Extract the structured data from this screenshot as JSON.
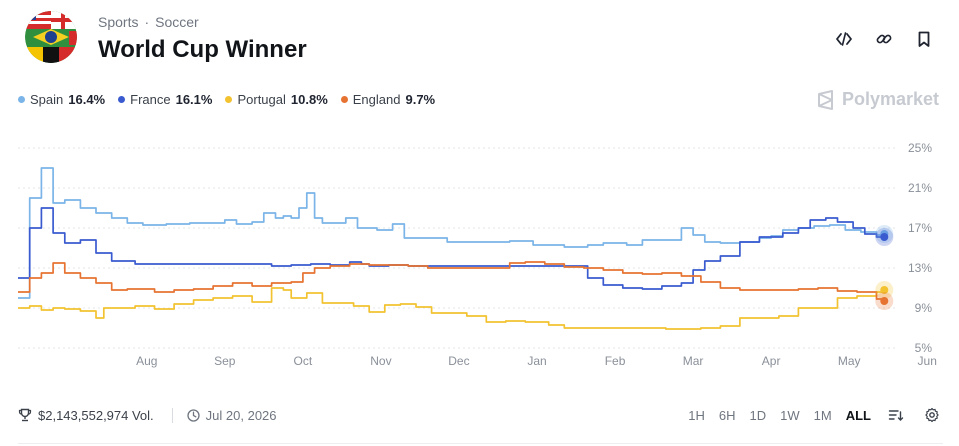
{
  "breadcrumb": {
    "sport": "Sports",
    "separator": "·",
    "league": "Soccer"
  },
  "market": {
    "title": "World Cup Winner"
  },
  "brand": {
    "name": "Polymarket"
  },
  "legend": [
    {
      "name": "Spain",
      "value": "16.4%",
      "color": "#7ab4e8"
    },
    {
      "name": "France",
      "value": "16.1%",
      "color": "#3a5bd0"
    },
    {
      "name": "Portugal",
      "value": "10.8%",
      "color": "#f2c230"
    },
    {
      "name": "England",
      "value": "9.7%",
      "color": "#e67332"
    }
  ],
  "footer": {
    "volume": "$2,143,552,974 Vol.",
    "date": "Jul 20, 2026",
    "ranges": [
      "1H",
      "6H",
      "1D",
      "1W",
      "1M",
      "ALL"
    ],
    "active_range": "ALL"
  },
  "icons": {
    "embed": "code-icon",
    "link": "link-icon",
    "bookmark": "bookmark-icon",
    "volume": "trophy-icon",
    "date": "clock-icon",
    "sort": "sort-icon",
    "settings": "gear-icon"
  },
  "chart_data": {
    "type": "line",
    "x_ticks": [
      "Aug",
      "Sep",
      "Oct",
      "Nov",
      "Dec",
      "Jan",
      "Feb",
      "Mar",
      "Apr",
      "May",
      "Jun"
    ],
    "y_ticks": [
      "25%",
      "21%",
      "17%",
      "13%",
      "9%",
      "5%"
    ],
    "ylim": [
      5,
      25
    ],
    "x_range": [
      "Jul",
      "Jun"
    ],
    "grid": true,
    "legend_position": "top-left",
    "series": [
      {
        "name": "Spain",
        "color": "#7ab4e8",
        "points": [
          [
            0,
            10
          ],
          [
            0.3,
            20
          ],
          [
            0.6,
            23
          ],
          [
            0.9,
            19.5
          ],
          [
            1.2,
            19.8
          ],
          [
            1.6,
            19
          ],
          [
            2,
            18.5
          ],
          [
            2.4,
            18
          ],
          [
            2.8,
            17.5
          ],
          [
            3.2,
            17.3
          ],
          [
            3.8,
            17.4
          ],
          [
            4.4,
            17.5
          ],
          [
            5,
            17.5
          ],
          [
            5.3,
            17.8
          ],
          [
            5.6,
            17.4
          ],
          [
            6,
            17.6
          ],
          [
            6.3,
            18.5
          ],
          [
            6.6,
            18
          ],
          [
            6.8,
            18.2
          ],
          [
            7,
            18
          ],
          [
            7.2,
            19
          ],
          [
            7.4,
            20.5
          ],
          [
            7.6,
            18
          ],
          [
            7.8,
            17.5
          ],
          [
            8.1,
            17.5
          ],
          [
            8.4,
            18
          ],
          [
            8.7,
            17
          ],
          [
            9.2,
            16.8
          ],
          [
            9.6,
            17.4
          ],
          [
            9.9,
            16
          ],
          [
            10.4,
            16
          ],
          [
            11,
            15.6
          ],
          [
            11.6,
            15.6
          ],
          [
            12,
            15.6
          ],
          [
            12.6,
            15.7
          ],
          [
            13.2,
            15.3
          ],
          [
            14,
            15.1
          ],
          [
            14.6,
            15.3
          ],
          [
            15,
            15.5
          ],
          [
            15.6,
            15.3
          ],
          [
            16,
            15.8
          ],
          [
            16.4,
            15.8
          ],
          [
            17,
            17
          ],
          [
            17.3,
            16.3
          ],
          [
            17.6,
            15.6
          ],
          [
            18,
            15.5
          ],
          [
            18.5,
            15.6
          ],
          [
            19,
            16
          ],
          [
            19.3,
            16.2
          ],
          [
            19.6,
            16.8
          ],
          [
            20,
            17
          ],
          [
            20.4,
            17.2
          ],
          [
            20.8,
            17.3
          ],
          [
            21.2,
            16.8
          ],
          [
            21.6,
            16.6
          ],
          [
            22,
            16.3
          ],
          [
            22.2,
            16.4
          ]
        ]
      },
      {
        "name": "France",
        "color": "#3a5bd0",
        "points": [
          [
            0,
            12
          ],
          [
            0.3,
            17
          ],
          [
            0.6,
            19
          ],
          [
            0.9,
            16.5
          ],
          [
            1.2,
            15.5
          ],
          [
            1.6,
            15.8
          ],
          [
            2,
            14.5
          ],
          [
            2.4,
            13.7
          ],
          [
            3,
            13.4
          ],
          [
            4,
            13.4
          ],
          [
            5,
            13.4
          ],
          [
            6,
            13.4
          ],
          [
            6.5,
            13.2
          ],
          [
            7,
            13.3
          ],
          [
            7.5,
            13.4
          ],
          [
            8,
            13.3
          ],
          [
            8.5,
            13.6
          ],
          [
            8.8,
            13.4
          ],
          [
            9,
            13.2
          ],
          [
            9.5,
            13.3
          ],
          [
            10,
            13.2
          ],
          [
            11,
            13.2
          ],
          [
            12,
            13.2
          ],
          [
            13,
            13.2
          ],
          [
            14,
            13.2
          ],
          [
            14.6,
            12
          ],
          [
            15,
            11.3
          ],
          [
            15.5,
            11
          ],
          [
            16,
            10.9
          ],
          [
            16.5,
            11.2
          ],
          [
            17,
            11.5
          ],
          [
            17.3,
            12.8
          ],
          [
            17.6,
            13.7
          ],
          [
            18,
            14.2
          ],
          [
            18.5,
            15.6
          ],
          [
            19,
            16.1
          ],
          [
            19.6,
            16.5
          ],
          [
            20,
            17
          ],
          [
            20.3,
            17.8
          ],
          [
            20.7,
            18
          ],
          [
            21,
            17.6
          ],
          [
            21.4,
            17
          ],
          [
            21.7,
            16.4
          ],
          [
            22,
            16.1
          ],
          [
            22.2,
            16.1
          ]
        ]
      },
      {
        "name": "Portugal",
        "color": "#f2c230",
        "points": [
          [
            0,
            9
          ],
          [
            0.3,
            9.2
          ],
          [
            0.6,
            8.8
          ],
          [
            0.9,
            9
          ],
          [
            1.2,
            8.9
          ],
          [
            1.6,
            8.7
          ],
          [
            2,
            8
          ],
          [
            2.2,
            9
          ],
          [
            2.6,
            9
          ],
          [
            3,
            9.2
          ],
          [
            3.5,
            8.9
          ],
          [
            4,
            9.4
          ],
          [
            4.5,
            9.8
          ],
          [
            5,
            10
          ],
          [
            5.5,
            10.2
          ],
          [
            6,
            9.6
          ],
          [
            6.5,
            11
          ],
          [
            6.8,
            10.8
          ],
          [
            7,
            10
          ],
          [
            7.4,
            10.5
          ],
          [
            7.8,
            9.5
          ],
          [
            8.2,
            9.5
          ],
          [
            8.6,
            9.2
          ],
          [
            9,
            8.6
          ],
          [
            9.4,
            9.3
          ],
          [
            9.8,
            9.4
          ],
          [
            10.2,
            9.1
          ],
          [
            10.6,
            8.5
          ],
          [
            11,
            8.5
          ],
          [
            11.5,
            8.2
          ],
          [
            12,
            7.6
          ],
          [
            12.5,
            7.7
          ],
          [
            13,
            7.6
          ],
          [
            13.6,
            7.3
          ],
          [
            14,
            7
          ],
          [
            14.6,
            7
          ],
          [
            15,
            7
          ],
          [
            15.6,
            7
          ],
          [
            16,
            7
          ],
          [
            16.6,
            6.9
          ],
          [
            17,
            6.9
          ],
          [
            17.5,
            7
          ],
          [
            18,
            7.2
          ],
          [
            18.5,
            8
          ],
          [
            19,
            8
          ],
          [
            19.5,
            8.2
          ],
          [
            20,
            9
          ],
          [
            20.5,
            9
          ],
          [
            21,
            10
          ],
          [
            21.5,
            10.2
          ],
          [
            22,
            10.6
          ],
          [
            22.2,
            10.8
          ]
        ]
      },
      {
        "name": "England",
        "color": "#e67332",
        "points": [
          [
            0,
            10.6
          ],
          [
            0.3,
            12
          ],
          [
            0.6,
            12.5
          ],
          [
            0.9,
            13.5
          ],
          [
            1.2,
            12.5
          ],
          [
            1.6,
            12
          ],
          [
            2,
            11.5
          ],
          [
            2.4,
            10.8
          ],
          [
            2.8,
            10.9
          ],
          [
            3.5,
            10.6
          ],
          [
            4,
            10.8
          ],
          [
            4.5,
            10.9
          ],
          [
            5,
            11.2
          ],
          [
            5.5,
            11.5
          ],
          [
            6,
            11.2
          ],
          [
            6.5,
            11.5
          ],
          [
            7,
            11.6
          ],
          [
            7.3,
            12.5
          ],
          [
            7.6,
            13
          ],
          [
            8,
            13.2
          ],
          [
            8.5,
            13.4
          ],
          [
            9,
            13.3
          ],
          [
            9.5,
            13.3
          ],
          [
            10,
            13.2
          ],
          [
            10.5,
            13
          ],
          [
            11,
            13
          ],
          [
            11.5,
            13
          ],
          [
            12,
            13
          ],
          [
            12.6,
            13.5
          ],
          [
            13,
            13.6
          ],
          [
            13.5,
            13.4
          ],
          [
            14,
            13.1
          ],
          [
            14.5,
            13
          ],
          [
            15,
            12.8
          ],
          [
            15.5,
            12.5
          ],
          [
            16,
            12.4
          ],
          [
            16.5,
            12.5
          ],
          [
            17,
            12.2
          ],
          [
            17.5,
            11.6
          ],
          [
            18,
            11
          ],
          [
            18.5,
            10.8
          ],
          [
            19,
            10.8
          ],
          [
            19.5,
            10.8
          ],
          [
            20,
            10.9
          ],
          [
            20.5,
            11
          ],
          [
            21,
            10.7
          ],
          [
            21.5,
            10.6
          ],
          [
            22,
            9.9
          ],
          [
            22.2,
            9.7
          ]
        ]
      }
    ]
  }
}
